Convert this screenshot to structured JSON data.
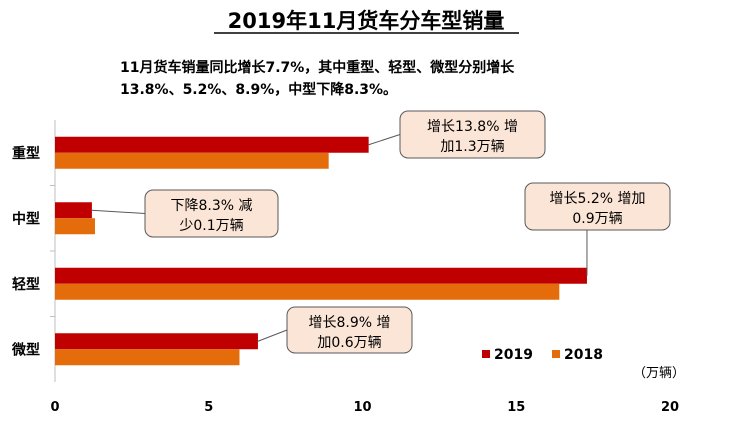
{
  "chart_data": {
    "type": "bar",
    "orientation": "horizontal",
    "title": "2019年11月货车分车型销量",
    "subtitle_lines": [
      "11月货车销量同比增长7.7%，其中重型、轻型、微型分别增长",
      "13.8%、5.2%、8.9%，中型下降8.3%。"
    ],
    "categories": [
      "重型",
      "中型",
      "轻型",
      "微型"
    ],
    "series": [
      {
        "name": "2019",
        "values": [
          10.2,
          1.2,
          17.3,
          6.6
        ]
      },
      {
        "name": "2018",
        "values": [
          8.9,
          1.3,
          16.4,
          6.0
        ]
      }
    ],
    "xlim": [
      0,
      20
    ],
    "xticks": [
      "0",
      "5",
      "10",
      "15",
      "20"
    ],
    "unit_label": "（万辆）",
    "legend_position": "bottom-right",
    "colors": {
      "2019": "#C00000",
      "2018": "#E46C0A",
      "callout_fill": "#FBE5D6",
      "callout_border": "#595959"
    },
    "annotations": [
      {
        "category": "重型",
        "lines": [
          "增长13.8% 增",
          "加1.3万辆"
        ]
      },
      {
        "category": "中型",
        "lines": [
          "下降8.3% 减",
          "少0.1万辆"
        ]
      },
      {
        "category": "轻型",
        "lines": [
          "增长5.2% 增加",
          "0.9万辆"
        ]
      },
      {
        "category": "微型",
        "lines": [
          "增长8.9% 增",
          "加0.6万辆"
        ]
      }
    ]
  }
}
